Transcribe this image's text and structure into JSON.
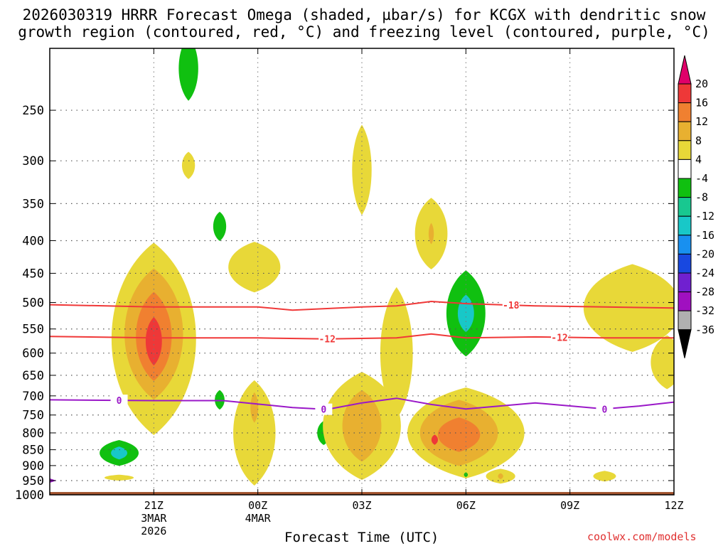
{
  "title": {
    "line1": "2026030319 HRRR Forecast Omega (shaded, µbar/s) for KCGX with dendritic snow",
    "line2": "growth region (contoured, red, °C) and freezing level (contoured, purple, °C)"
  },
  "credit": "coolwx.com/models",
  "chart_data": {
    "type": "contour",
    "title": "2026030319 HRRR Forecast Omega (shaded, µbar/s) for KCGX with dendritic snow growth region (contoured, red, °C) and freezing level (contoured, purple, °C)",
    "xlabel": "Forecast Time (UTC)",
    "ylabel": "",
    "xlim": [
      -1,
      17
    ],
    "ylim": [
      1000,
      200
    ],
    "y_ticks": [
      250,
      300,
      350,
      400,
      450,
      500,
      550,
      600,
      650,
      700,
      750,
      800,
      850,
      900,
      950,
      1000
    ],
    "x_ticks": [
      {
        "hour": 2,
        "label": "21Z",
        "sub1": "3MAR",
        "sub2": "2026"
      },
      {
        "hour": 5,
        "label": "00Z",
        "sub1": "4MAR",
        "sub2": ""
      },
      {
        "hour": 8,
        "label": "03Z",
        "sub1": "",
        "sub2": ""
      },
      {
        "hour": 11,
        "label": "06Z",
        "sub1": "",
        "sub2": ""
      },
      {
        "hour": 14,
        "label": "09Z",
        "sub1": "",
        "sub2": ""
      },
      {
        "hour": 17,
        "label": "12Z",
        "sub1": "",
        "sub2": ""
      }
    ],
    "colorbar": {
      "labels": [
        20,
        16,
        12,
        8,
        4,
        -4,
        -8,
        -12,
        -16,
        -20,
        -24,
        -28,
        -32,
        -36
      ],
      "colors": [
        "#ee3838",
        "#f08030",
        "#e8b030",
        "#e8d838",
        "#ffffff",
        "#10c010",
        "#18c890",
        "#18c8c8",
        "#1890f0",
        "#1848e0",
        "#7020d0",
        "#a010c0",
        "#b0b0b0"
      ],
      "top_arrow_color": "#e0006a",
      "bottom_arrow_color": "#000000"
    },
    "omega_features": [
      {
        "t": 2.0,
        "p": 570,
        "rt": 1.3,
        "rp": 190,
        "level": 4
      },
      {
        "t": 2.0,
        "p": 560,
        "rt": 0.9,
        "rp": 130,
        "level": 8
      },
      {
        "t": 2.0,
        "p": 565,
        "rt": 0.55,
        "rp": 90,
        "level": 12
      },
      {
        "t": 2.0,
        "p": 575,
        "rt": 0.25,
        "rp": 50,
        "level": 16
      },
      {
        "t": 1.0,
        "p": 860,
        "rt": 0.6,
        "rp": 40,
        "level": -4
      },
      {
        "t": 1.0,
        "p": 860,
        "rt": 0.25,
        "rp": 20,
        "level": -12
      },
      {
        "t": 1.0,
        "p": 940,
        "rt": 0.45,
        "rp": 10,
        "level": 4
      },
      {
        "t": 3.0,
        "p": 215,
        "rt": 0.3,
        "rp": 25,
        "level": -4
      },
      {
        "t": 3.0,
        "p": 305,
        "rt": 0.2,
        "rp": 15,
        "level": 4
      },
      {
        "t": 3.9,
        "p": 380,
        "rt": 0.2,
        "rp": 20,
        "level": -4
      },
      {
        "t": 3.9,
        "p": 710,
        "rt": 0.15,
        "rp": 25,
        "level": -4
      },
      {
        "t": 4.9,
        "p": 440,
        "rt": 0.8,
        "rp": 40,
        "level": 4
      },
      {
        "t": 4.9,
        "p": 800,
        "rt": 0.65,
        "rp": 150,
        "level": 4
      },
      {
        "t": 4.9,
        "p": 730,
        "rt": 0.12,
        "rp": 40,
        "level": 8
      },
      {
        "t": 6.9,
        "p": 800,
        "rt": 0.2,
        "rp": 35,
        "level": -4
      },
      {
        "t": 8.0,
        "p": 310,
        "rt": 0.3,
        "rp": 50,
        "level": 4
      },
      {
        "t": 8.0,
        "p": 780,
        "rt": 1.2,
        "rp": 150,
        "level": 4
      },
      {
        "t": 8.0,
        "p": 780,
        "rt": 0.6,
        "rp": 100,
        "level": 8
      },
      {
        "t": 9.0,
        "p": 600,
        "rt": 0.5,
        "rp": 140,
        "level": 4
      },
      {
        "t": 10.0,
        "p": 390,
        "rt": 0.5,
        "rp": 50,
        "level": 4
      },
      {
        "t": 10.0,
        "p": 390,
        "rt": 0.08,
        "rp": 15,
        "level": 8
      },
      {
        "t": 11.0,
        "p": 520,
        "rt": 0.6,
        "rp": 80,
        "level": -4
      },
      {
        "t": 11.0,
        "p": 520,
        "rt": 0.25,
        "rp": 35,
        "level": -12
      },
      {
        "t": 11.0,
        "p": 800,
        "rt": 1.8,
        "rp": 130,
        "level": 4
      },
      {
        "t": 10.8,
        "p": 800,
        "rt": 1.2,
        "rp": 95,
        "level": 8
      },
      {
        "t": 10.8,
        "p": 805,
        "rt": 0.65,
        "rp": 50,
        "level": 12
      },
      {
        "t": 10.1,
        "p": 820,
        "rt": 0.1,
        "rp": 15,
        "level": 16
      },
      {
        "t": 11.0,
        "p": 930,
        "rt": 0.06,
        "rp": 8,
        "level": -4
      },
      {
        "t": 12.0,
        "p": 935,
        "rt": 0.45,
        "rp": 25,
        "level": 4
      },
      {
        "t": 12.0,
        "p": 935,
        "rt": 0.08,
        "rp": 10,
        "level": 8
      },
      {
        "t": 15.0,
        "p": 935,
        "rt": 0.35,
        "rp": 18,
        "level": 4
      },
      {
        "t": 15.8,
        "p": 510,
        "rt": 1.5,
        "rp": 80,
        "level": 4
      },
      {
        "t": 16.8,
        "p": 620,
        "rt": 0.5,
        "rp": 60,
        "level": 4
      }
    ],
    "dgz_top": {
      "label": "-18",
      "label_hour": 12.3,
      "hours": [
        -1,
        2,
        5,
        6,
        8,
        9,
        10,
        11,
        13,
        15,
        17
      ],
      "pressure": [
        504,
        508,
        508,
        514,
        508,
        506,
        498,
        502,
        506,
        508,
        510
      ]
    },
    "dgz_bottom": {
      "label": "-12",
      "label_hour": 7.0,
      "hours": [
        -1,
        2,
        5,
        7,
        9,
        10,
        11,
        13,
        15,
        17
      ],
      "pressure": [
        565,
        568,
        568,
        570,
        568,
        560,
        568,
        566,
        568,
        568
      ]
    },
    "freezing_level": {
      "label": "0",
      "label_hour": 1.0,
      "label_hours": [
        1.0,
        6.9,
        15.0
      ],
      "hours": [
        -1,
        2,
        4,
        6,
        7,
        8,
        9,
        10,
        11,
        13,
        15,
        16,
        17
      ],
      "pressure": [
        710,
        712,
        712,
        730,
        735,
        718,
        706,
        722,
        734,
        718,
        734,
        726,
        716
      ]
    },
    "ground_pressure": 990
  }
}
